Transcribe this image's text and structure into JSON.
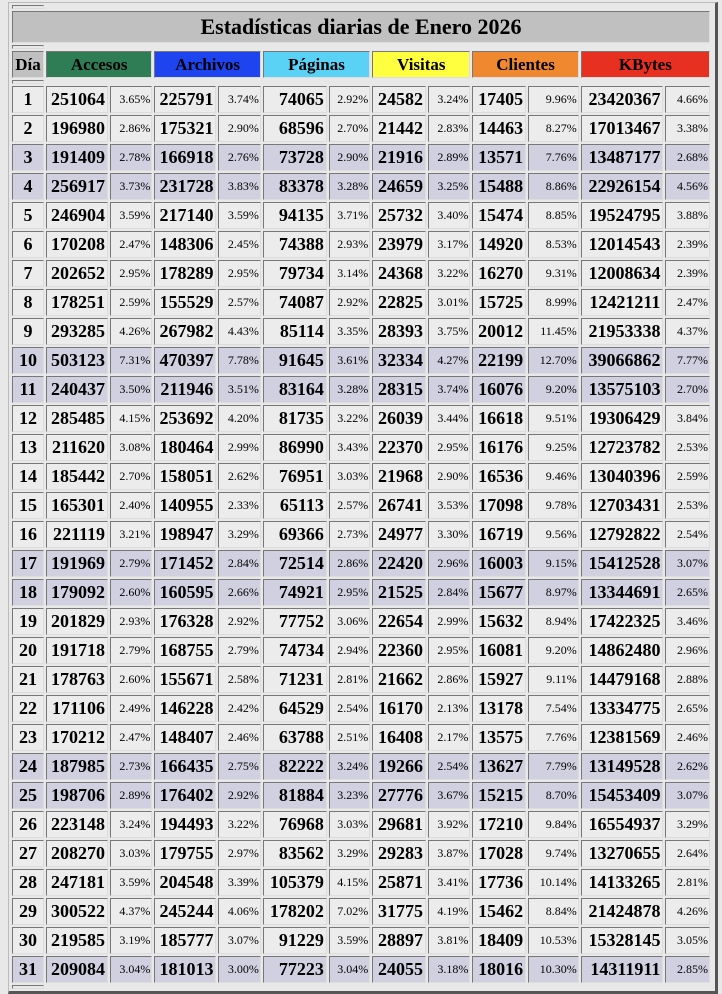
{
  "title": "Estadísticas diarias de Enero 2026",
  "headers": {
    "day": "Día",
    "cols": [
      {
        "label": "Accesos",
        "color": "#2e7d55"
      },
      {
        "label": "Archivos",
        "color": "#1e44f0"
      },
      {
        "label": "Páginas",
        "color": "#5ad2f5"
      },
      {
        "label": "Visitas",
        "color": "#ffff40"
      },
      {
        "label": "Clientes",
        "color": "#f08830"
      },
      {
        "label": "KBytes",
        "color": "#e83020"
      }
    ]
  },
  "weekend_color": "#d0d0e0",
  "weekend_days": [
    3,
    4,
    10,
    11,
    17,
    18,
    24,
    25,
    31
  ],
  "rows": [
    [
      "1",
      "251064",
      "3.65%",
      "225791",
      "3.74%",
      "74065",
      "2.92%",
      "24582",
      "3.24%",
      "17405",
      "9.96%",
      "23420367",
      "4.66%"
    ],
    [
      "2",
      "196980",
      "2.86%",
      "175321",
      "2.90%",
      "68596",
      "2.70%",
      "21442",
      "2.83%",
      "14463",
      "8.27%",
      "17013467",
      "3.38%"
    ],
    [
      "3",
      "191409",
      "2.78%",
      "166918",
      "2.76%",
      "73728",
      "2.90%",
      "21916",
      "2.89%",
      "13571",
      "7.76%",
      "13487177",
      "2.68%"
    ],
    [
      "4",
      "256917",
      "3.73%",
      "231728",
      "3.83%",
      "83378",
      "3.28%",
      "24659",
      "3.25%",
      "15488",
      "8.86%",
      "22926154",
      "4.56%"
    ],
    [
      "5",
      "246904",
      "3.59%",
      "217140",
      "3.59%",
      "94135",
      "3.71%",
      "25732",
      "3.40%",
      "15474",
      "8.85%",
      "19524795",
      "3.88%"
    ],
    [
      "6",
      "170208",
      "2.47%",
      "148306",
      "2.45%",
      "74388",
      "2.93%",
      "23979",
      "3.17%",
      "14920",
      "8.53%",
      "12014543",
      "2.39%"
    ],
    [
      "7",
      "202652",
      "2.95%",
      "178289",
      "2.95%",
      "79734",
      "3.14%",
      "24368",
      "3.22%",
      "16270",
      "9.31%",
      "12008634",
      "2.39%"
    ],
    [
      "8",
      "178251",
      "2.59%",
      "155529",
      "2.57%",
      "74087",
      "2.92%",
      "22825",
      "3.01%",
      "15725",
      "8.99%",
      "12421211",
      "2.47%"
    ],
    [
      "9",
      "293285",
      "4.26%",
      "267982",
      "4.43%",
      "85114",
      "3.35%",
      "28393",
      "3.75%",
      "20012",
      "11.45%",
      "21953338",
      "4.37%"
    ],
    [
      "10",
      "503123",
      "7.31%",
      "470397",
      "7.78%",
      "91645",
      "3.61%",
      "32334",
      "4.27%",
      "22199",
      "12.70%",
      "39066862",
      "7.77%"
    ],
    [
      "11",
      "240437",
      "3.50%",
      "211946",
      "3.51%",
      "83164",
      "3.28%",
      "28315",
      "3.74%",
      "16076",
      "9.20%",
      "13575103",
      "2.70%"
    ],
    [
      "12",
      "285485",
      "4.15%",
      "253692",
      "4.20%",
      "81735",
      "3.22%",
      "26039",
      "3.44%",
      "16618",
      "9.51%",
      "19306429",
      "3.84%"
    ],
    [
      "13",
      "211620",
      "3.08%",
      "180464",
      "2.99%",
      "86990",
      "3.43%",
      "22370",
      "2.95%",
      "16176",
      "9.25%",
      "12723782",
      "2.53%"
    ],
    [
      "14",
      "185442",
      "2.70%",
      "158051",
      "2.62%",
      "76951",
      "3.03%",
      "21968",
      "2.90%",
      "16536",
      "9.46%",
      "13040396",
      "2.59%"
    ],
    [
      "15",
      "165301",
      "2.40%",
      "140955",
      "2.33%",
      "65113",
      "2.57%",
      "26741",
      "3.53%",
      "17098",
      "9.78%",
      "12703431",
      "2.53%"
    ],
    [
      "16",
      "221119",
      "3.21%",
      "198947",
      "3.29%",
      "69366",
      "2.73%",
      "24977",
      "3.30%",
      "16719",
      "9.56%",
      "12792822",
      "2.54%"
    ],
    [
      "17",
      "191969",
      "2.79%",
      "171452",
      "2.84%",
      "72514",
      "2.86%",
      "22420",
      "2.96%",
      "16003",
      "9.15%",
      "15412528",
      "3.07%"
    ],
    [
      "18",
      "179092",
      "2.60%",
      "160595",
      "2.66%",
      "74921",
      "2.95%",
      "21525",
      "2.84%",
      "15677",
      "8.97%",
      "13344691",
      "2.65%"
    ],
    [
      "19",
      "201829",
      "2.93%",
      "176328",
      "2.92%",
      "77752",
      "3.06%",
      "22654",
      "2.99%",
      "15632",
      "8.94%",
      "17422325",
      "3.46%"
    ],
    [
      "20",
      "191718",
      "2.79%",
      "168755",
      "2.79%",
      "74734",
      "2.94%",
      "22360",
      "2.95%",
      "16081",
      "9.20%",
      "14862480",
      "2.96%"
    ],
    [
      "21",
      "178763",
      "2.60%",
      "155671",
      "2.58%",
      "71231",
      "2.81%",
      "21662",
      "2.86%",
      "15927",
      "9.11%",
      "14479168",
      "2.88%"
    ],
    [
      "22",
      "171106",
      "2.49%",
      "146228",
      "2.42%",
      "64529",
      "2.54%",
      "16170",
      "2.13%",
      "13178",
      "7.54%",
      "13334775",
      "2.65%"
    ],
    [
      "23",
      "170212",
      "2.47%",
      "148407",
      "2.46%",
      "63788",
      "2.51%",
      "16408",
      "2.17%",
      "13575",
      "7.76%",
      "12381569",
      "2.46%"
    ],
    [
      "24",
      "187985",
      "2.73%",
      "166435",
      "2.75%",
      "82222",
      "3.24%",
      "19266",
      "2.54%",
      "13627",
      "7.79%",
      "13149528",
      "2.62%"
    ],
    [
      "25",
      "198706",
      "2.89%",
      "176402",
      "2.92%",
      "81884",
      "3.23%",
      "27776",
      "3.67%",
      "15215",
      "8.70%",
      "15453409",
      "3.07%"
    ],
    [
      "26",
      "223148",
      "3.24%",
      "194493",
      "3.22%",
      "76968",
      "3.03%",
      "29681",
      "3.92%",
      "17210",
      "9.84%",
      "16554937",
      "3.29%"
    ],
    [
      "27",
      "208270",
      "3.03%",
      "179755",
      "2.97%",
      "83562",
      "3.29%",
      "29283",
      "3.87%",
      "17028",
      "9.74%",
      "13270655",
      "2.64%"
    ],
    [
      "28",
      "247181",
      "3.59%",
      "204548",
      "3.39%",
      "105379",
      "4.15%",
      "25871",
      "3.41%",
      "17736",
      "10.14%",
      "14133265",
      "2.81%"
    ],
    [
      "29",
      "300522",
      "4.37%",
      "245244",
      "4.06%",
      "178202",
      "7.02%",
      "31775",
      "4.19%",
      "15462",
      "8.84%",
      "21424878",
      "4.26%"
    ],
    [
      "30",
      "219585",
      "3.19%",
      "185777",
      "3.07%",
      "91229",
      "3.59%",
      "28897",
      "3.81%",
      "18409",
      "10.53%",
      "15328145",
      "3.05%"
    ],
    [
      "31",
      "209084",
      "3.04%",
      "181013",
      "3.00%",
      "77223",
      "3.04%",
      "24055",
      "3.18%",
      "18016",
      "10.30%",
      "14311911",
      "2.85%"
    ]
  ]
}
